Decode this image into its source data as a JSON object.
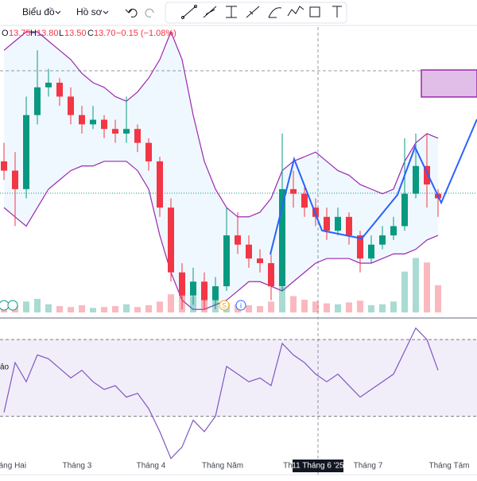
{
  "toolbar": {
    "chart": "Biểu đồ",
    "profile": "Hồ sơ"
  },
  "legend": {
    "o_label": "O",
    "open": "13.75",
    "h_label": "H",
    "high": "13.80",
    "l_label": "L",
    "low": "13.50",
    "c_label": "C",
    "close": "13.70",
    "change": "−0.15 (−1.08%)"
  },
  "rsi_label": "ảo",
  "events": [
    "S",
    "i"
  ],
  "chart_data": [
    {
      "type": "candlestick",
      "ylim": [
        12.45,
        15.5
      ],
      "open": [
        14.1,
        14.0,
        13.8,
        14.6,
        14.9,
        14.95,
        14.8,
        14.6,
        14.5,
        14.55,
        14.45,
        14.4,
        14.45,
        14.3,
        14.1,
        13.6,
        12.9,
        12.65,
        12.8,
        12.6,
        12.75,
        13.3,
        13.2,
        13.05,
        13.0,
        12.75,
        13.8,
        13.75,
        13.6,
        13.5,
        13.35,
        13.5,
        13.3,
        13.05,
        13.2,
        13.3,
        13.4,
        13.75,
        14.05,
        13.75
      ],
      "close": [
        14.0,
        13.8,
        14.6,
        14.9,
        14.95,
        14.8,
        14.6,
        14.5,
        14.55,
        14.45,
        14.4,
        14.45,
        14.3,
        14.1,
        13.6,
        12.9,
        12.65,
        12.8,
        12.6,
        12.75,
        13.3,
        13.2,
        13.05,
        13.0,
        12.75,
        13.8,
        13.75,
        13.6,
        13.5,
        13.35,
        13.5,
        13.3,
        13.05,
        13.2,
        13.3,
        13.4,
        13.75,
        14.05,
        13.85,
        13.7
      ],
      "high": [
        14.3,
        14.2,
        14.8,
        15.3,
        15.1,
        15.0,
        14.9,
        14.7,
        14.7,
        14.6,
        14.55,
        14.8,
        14.5,
        14.35,
        14.15,
        13.7,
        13.0,
        12.95,
        12.9,
        12.85,
        13.6,
        13.55,
        13.3,
        13.15,
        13.1,
        14.4,
        14.0,
        13.85,
        13.7,
        13.6,
        13.6,
        13.55,
        13.35,
        13.3,
        13.4,
        13.5,
        14.35,
        14.4,
        14.4,
        13.8
      ],
      "low": [
        13.9,
        13.4,
        13.7,
        14.5,
        14.8,
        14.7,
        14.5,
        14.4,
        14.45,
        14.35,
        14.3,
        14.3,
        14.2,
        14.0,
        13.5,
        12.8,
        12.5,
        12.55,
        12.5,
        12.5,
        12.7,
        13.1,
        12.95,
        12.9,
        12.6,
        12.7,
        13.6,
        13.5,
        13.4,
        13.25,
        13.3,
        13.2,
        12.9,
        13.0,
        13.15,
        13.25,
        13.35,
        13.7,
        13.6,
        13.5
      ],
      "bb_upper": [
        15.3,
        15.4,
        15.5,
        15.5,
        15.4,
        15.3,
        15.2,
        15.05,
        14.95,
        14.9,
        14.8,
        14.75,
        14.85,
        15.0,
        15.2,
        15.5,
        15.2,
        14.6,
        14.1,
        13.8,
        13.6,
        13.5,
        13.5,
        13.55,
        13.7,
        14.0,
        14.1,
        14.15,
        14.2,
        14.1,
        14.0,
        13.95,
        13.85,
        13.8,
        13.75,
        13.8,
        14.1,
        14.3,
        14.4,
        14.35
      ],
      "bb_lower": [
        13.6,
        13.5,
        13.4,
        13.6,
        13.8,
        13.9,
        14.0,
        14.05,
        14.05,
        14.1,
        14.1,
        14.1,
        14.0,
        13.8,
        13.3,
        12.9,
        12.6,
        12.5,
        12.5,
        12.55,
        12.6,
        12.7,
        12.8,
        12.8,
        12.75,
        12.7,
        12.8,
        12.9,
        13.0,
        13.05,
        13.05,
        13.05,
        13.0,
        13.0,
        13.05,
        13.1,
        13.1,
        13.15,
        13.25,
        13.3
      ],
      "volume": [
        10,
        8,
        12,
        15,
        9,
        7,
        6,
        8,
        5,
        6,
        7,
        9,
        6,
        8,
        12,
        20,
        25,
        18,
        22,
        15,
        10,
        9,
        8,
        7,
        12,
        28,
        18,
        14,
        12,
        10,
        9,
        11,
        13,
        8,
        9,
        12,
        45,
        60,
        55,
        30
      ],
      "volume_ylim": [
        0,
        70
      ]
    },
    {
      "type": "line",
      "values": [
        32,
        58,
        48,
        62,
        60,
        55,
        50,
        54,
        48,
        44,
        46,
        40,
        42,
        34,
        22,
        8,
        14,
        28,
        22,
        30,
        56,
        52,
        48,
        50,
        46,
        68,
        62,
        58,
        52,
        48,
        52,
        46,
        40,
        44,
        48,
        52,
        64,
        76,
        70,
        54
      ],
      "ylim": [
        0,
        80
      ],
      "yticks": [
        30,
        70
      ]
    }
  ],
  "x_labels": [
    "Tháng Hai",
    "Tháng 3",
    "Tháng 4",
    "Tháng Năm",
    "Th",
    "11 Tháng 6 '25",
    "Tháng 7",
    "Tháng Tám"
  ]
}
